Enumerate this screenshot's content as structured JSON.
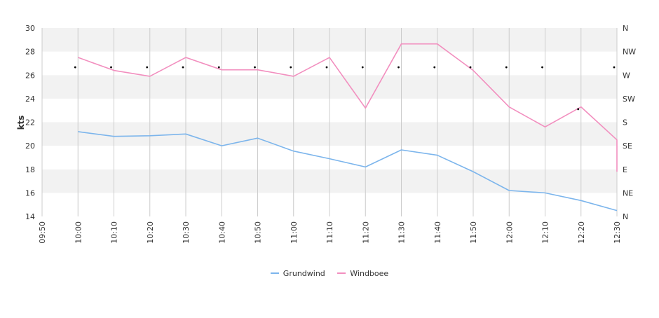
{
  "chart_data": {
    "type": "line",
    "ylabel": "kts",
    "ylim": [
      14,
      30
    ],
    "yticks": [
      14,
      16,
      18,
      20,
      22,
      24,
      26,
      28,
      30
    ],
    "x_categories": [
      "09:50",
      "10:00",
      "10:10",
      "10:20",
      "10:30",
      "10:40",
      "10:50",
      "11:00",
      "11:10",
      "11:20",
      "11:30",
      "11:40",
      "11:50",
      "12:00",
      "12:10",
      "12:20",
      "12:30"
    ],
    "right_axis": {
      "labels": [
        "N",
        "NE",
        "E",
        "SE",
        "S",
        "SW",
        "W",
        "NW",
        "N"
      ],
      "range_degrees": [
        0,
        360
      ]
    },
    "series": [
      {
        "name": "Grundwind",
        "color": "#7cb5ec",
        "points": [
          [
            "10:00",
            21.2
          ],
          [
            "10:10",
            20.8
          ],
          [
            "10:20",
            20.85
          ],
          [
            "10:30",
            21.0
          ],
          [
            "10:40",
            20.0
          ],
          [
            "10:50",
            20.65
          ],
          [
            "11:00",
            19.55
          ],
          [
            "11:10",
            18.9
          ],
          [
            "11:20",
            18.2
          ],
          [
            "11:30",
            19.65
          ],
          [
            "11:40",
            19.2
          ],
          [
            "11:50",
            17.8
          ],
          [
            "12:00",
            16.2
          ],
          [
            "12:10",
            16.0
          ],
          [
            "12:20",
            15.35
          ],
          [
            "12:30",
            14.5
          ]
        ]
      },
      {
        "name": "Windboee",
        "color": "#f28fbf",
        "points": [
          [
            "10:00",
            27.5
          ],
          [
            "10:10",
            26.4
          ],
          [
            "10:20",
            25.9
          ],
          [
            "10:30",
            27.5
          ],
          [
            "10:40",
            26.45
          ],
          [
            "10:50",
            26.45
          ],
          [
            "11:00",
            25.9
          ],
          [
            "11:10",
            27.5
          ],
          [
            "11:20",
            23.2
          ],
          [
            "11:30",
            28.65
          ],
          [
            "11:40",
            28.65
          ],
          [
            "11:50",
            26.4
          ],
          [
            "12:00",
            23.3
          ],
          [
            "12:10",
            21.6
          ],
          [
            "12:20",
            23.3
          ],
          [
            "12:30",
            20.5
          ],
          [
            "12:30",
            17.8
          ]
        ]
      }
    ],
    "direction_points": [
      [
        "10:00",
        285
      ],
      [
        "10:10",
        285
      ],
      [
        "10:20",
        285
      ],
      [
        "10:30",
        285
      ],
      [
        "10:40",
        285
      ],
      [
        "10:50",
        285
      ],
      [
        "11:00",
        285
      ],
      [
        "11:10",
        285
      ],
      [
        "11:20",
        285
      ],
      [
        "11:30",
        285
      ],
      [
        "11:40",
        285
      ],
      [
        "11:50",
        285
      ],
      [
        "12:00",
        285
      ],
      [
        "12:10",
        285
      ],
      [
        "12:20",
        205
      ],
      [
        "12:30",
        285
      ]
    ],
    "legend": [
      "Grundwind",
      "Windboee"
    ],
    "legend_position": "bottom-center",
    "grid": true
  },
  "colors": {
    "band": "#f2f2f2",
    "gridline": "#cccccc",
    "axis_text": "#333333",
    "direction_marker": "#000000"
  }
}
